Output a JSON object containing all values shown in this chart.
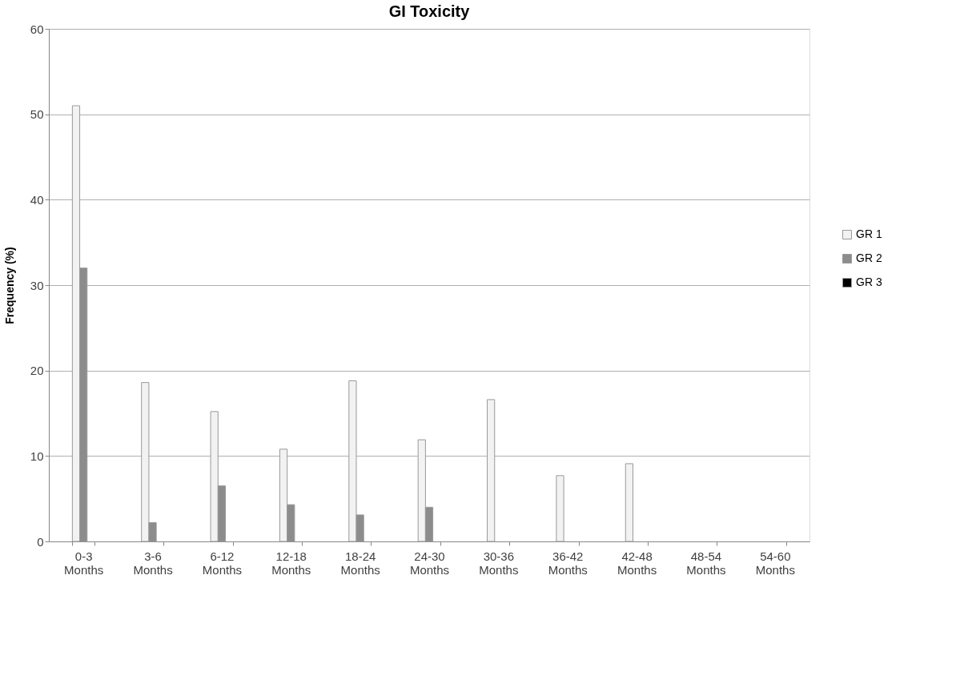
{
  "chart_data": {
    "type": "bar",
    "title": "GI Toxicity",
    "ylabel": "Frequency (%)",
    "categories": [
      "0-3 Months",
      "3-6 Months",
      "6-12 Months",
      "12-18 Months",
      "18-24 Months",
      "24-30 Months",
      "30-36 Months",
      "36-42 Months",
      "42-48 Months",
      "48-54 Months",
      "54-60 Months"
    ],
    "series": [
      {
        "name": "GR 1",
        "color": "#f2f2f2",
        "values": [
          51.0,
          18.6,
          15.2,
          10.8,
          18.8,
          11.9,
          16.6,
          7.7,
          9.1,
          null,
          null
        ]
      },
      {
        "name": "GR 2",
        "color": "#8c8c8c",
        "values": [
          32.0,
          2.2,
          6.5,
          4.3,
          3.1,
          4.0,
          null,
          null,
          null,
          null,
          null
        ]
      },
      {
        "name": "GR 3",
        "color": "#000000",
        "values": [
          null,
          null,
          null,
          null,
          null,
          null,
          null,
          null,
          null,
          null,
          null
        ]
      }
    ],
    "ylim": [
      0,
      60
    ],
    "yticks": [
      0,
      10,
      20,
      30,
      40,
      50,
      60
    ],
    "grid": "y",
    "legend": "right"
  }
}
